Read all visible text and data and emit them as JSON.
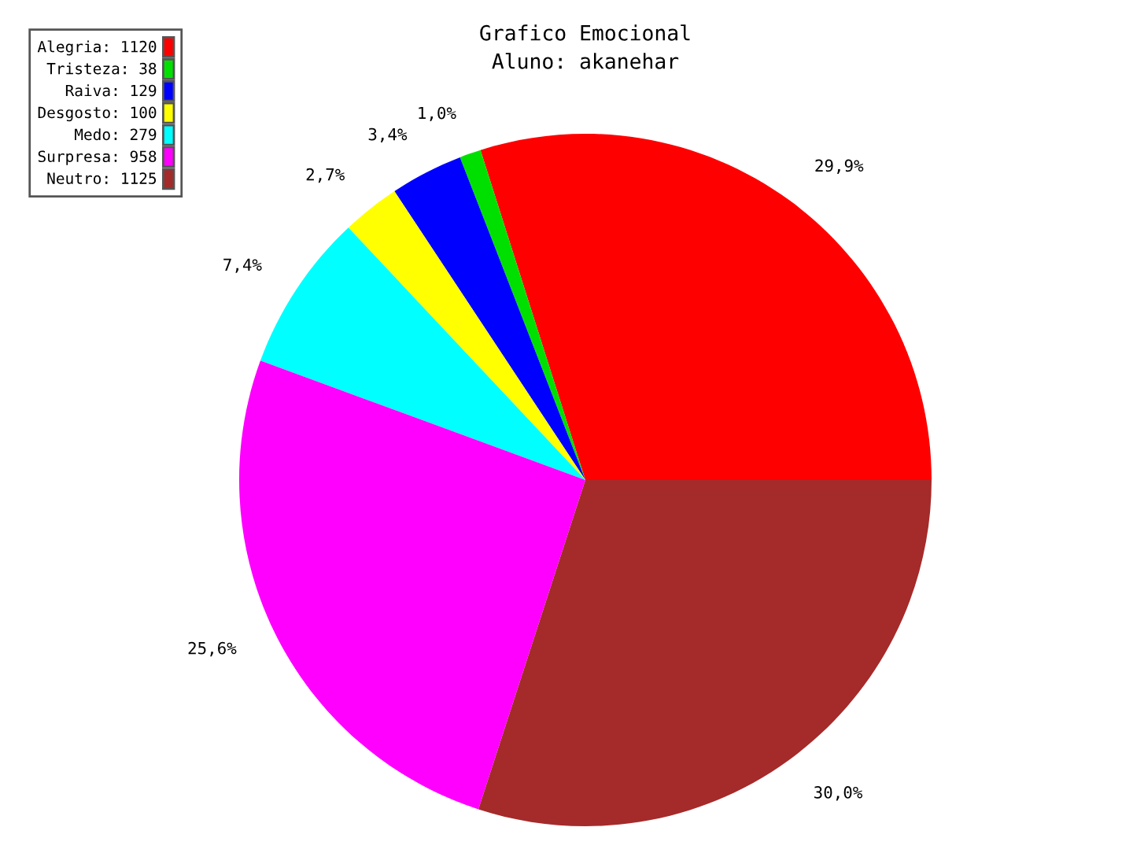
{
  "chart_data": {
    "type": "pie",
    "title": "Grafico Emocional",
    "subtitle": "Aluno: akanehar",
    "categories": [
      "Alegria: 1120",
      "Tristeza: 38",
      "Raiva: 129",
      "Desgosto: 100",
      "Medo: 279",
      "Surpresa: 958",
      "Neutro: 1125"
    ],
    "values": [
      29.9,
      1.0,
      3.4,
      2.7,
      7.4,
      25.6,
      30.0
    ],
    "colors": [
      "#ff0000",
      "#00e000",
      "#0000ff",
      "#ffff00",
      "#00ffff",
      "#ff00ff",
      "#a52a2a"
    ],
    "value_labels": [
      "29,9%",
      "1,0%",
      "3,4%",
      "2,7%",
      "7,4%",
      "25,6%",
      "30,0%"
    ],
    "legend": "top left"
  }
}
